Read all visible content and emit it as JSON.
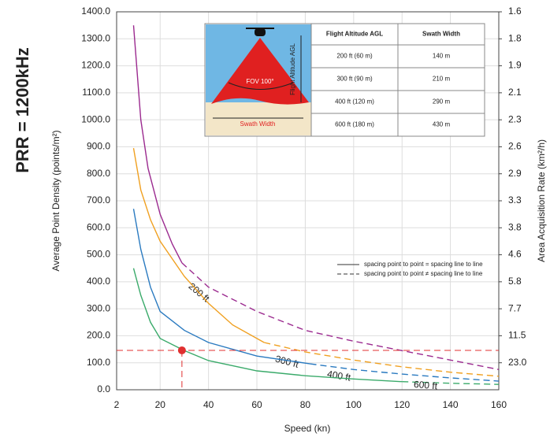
{
  "chart_data": {
    "type": "line",
    "side_title": "PRR = 1200kHz",
    "ylabel": "Average Point Density (points/m²)",
    "y2label": "Area Acquisition Rate (km²/h)",
    "xlabel": "Speed (kn)",
    "xlim": [
      2,
      160
    ],
    "xticks": [
      2,
      20,
      40,
      60,
      80,
      100,
      120,
      140,
      160
    ],
    "ylim": [
      0,
      1400
    ],
    "yticks": [
      {
        "value": 0,
        "label": "0.0"
      },
      {
        "value": 100,
        "label": "100.0"
      },
      {
        "value": 200,
        "label": "200.0"
      },
      {
        "value": 300,
        "label": "300.0"
      },
      {
        "value": 400,
        "label": "400.0"
      },
      {
        "value": 500,
        "label": "500.0"
      },
      {
        "value": 600,
        "label": "600.0"
      },
      {
        "value": 700,
        "label": "700.0"
      },
      {
        "value": 800,
        "label": "800.0"
      },
      {
        "value": 900,
        "label": "900.0"
      },
      {
        "value": 1000,
        "label": "1000.0"
      },
      {
        "value": 1100,
        "label": "1100.0"
      },
      {
        "value": 1200,
        "label": "1200.0"
      },
      {
        "value": 1300,
        "label": "1300.0"
      },
      {
        "value": 1400,
        "label": "1400.0"
      }
    ],
    "y2ticks": [
      {
        "value": 23,
        "label": "23.0"
      },
      11.5,
      7.7,
      5.8,
      4.6,
      3.8,
      3.3,
      2.9,
      2.6,
      2.3,
      2.1,
      1.9,
      1.8,
      1.6
    ],
    "grid": true,
    "legend": [
      {
        "label": "spacing point to point = spacing line to line",
        "dashed": false
      },
      {
        "label": "spacing point to point ≠ spacing line to line",
        "dashed": true
      }
    ],
    "series": [
      {
        "name": "200 ft",
        "color": "#9b2a8f",
        "solid": {
          "x": [
            9,
            12,
            15,
            20,
            25,
            29
          ],
          "values": [
            1350,
            1000,
            820,
            650,
            540,
            470
          ]
        },
        "dashed": {
          "x": [
            29,
            40,
            60,
            80,
            100,
            120,
            140,
            160
          ],
          "values": [
            470,
            380,
            290,
            220,
            180,
            145,
            110,
            75
          ]
        }
      },
      {
        "name": "300 ft",
        "color": "#f0a020",
        "solid": {
          "x": [
            9,
            12,
            16,
            20,
            30,
            40,
            50,
            63
          ],
          "values": [
            895,
            740,
            630,
            550,
            420,
            320,
            240,
            175
          ]
        },
        "dashed": {
          "x": [
            63,
            80,
            100,
            120,
            140,
            160
          ],
          "values": [
            175,
            140,
            110,
            85,
            65,
            50
          ]
        }
      },
      {
        "name": "400 ft",
        "color": "#2a7ac0",
        "solid": {
          "x": [
            9,
            12,
            16,
            20,
            30,
            40,
            60,
            82
          ],
          "values": [
            670,
            520,
            380,
            290,
            220,
            175,
            125,
            96
          ]
        },
        "dashed": {
          "x": [
            82,
            100,
            120,
            140,
            160
          ],
          "values": [
            96,
            75,
            58,
            44,
            32
          ]
        }
      },
      {
        "name": "600 ft",
        "color": "#3aaa6a",
        "solid": {
          "x": [
            9,
            12,
            16,
            20,
            30,
            40,
            60,
            80,
            100,
            120
          ],
          "values": [
            450,
            350,
            250,
            190,
            145,
            108,
            70,
            52,
            40,
            30
          ]
        },
        "dashed": {
          "x": [
            120,
            140,
            160
          ],
          "values": [
            30,
            24,
            20
          ]
        }
      }
    ],
    "marker": {
      "x": 29,
      "y": 146,
      "color": "#e03030"
    }
  },
  "inset": {
    "diagram": {
      "fov": "FOV 100°",
      "altitude": "Flight Altitude AGL",
      "swath": "Swath Width"
    },
    "table": {
      "header": [
        "Flight Altitude AGL",
        "Swath Width"
      ],
      "rows": [
        [
          "200 ft (60 m)",
          "140 m"
        ],
        [
          "300 ft (90 m)",
          "210 m"
        ],
        [
          "400 ft (120 m)",
          "290 m"
        ],
        [
          "600 ft (180 m)",
          "430 m"
        ]
      ]
    }
  }
}
